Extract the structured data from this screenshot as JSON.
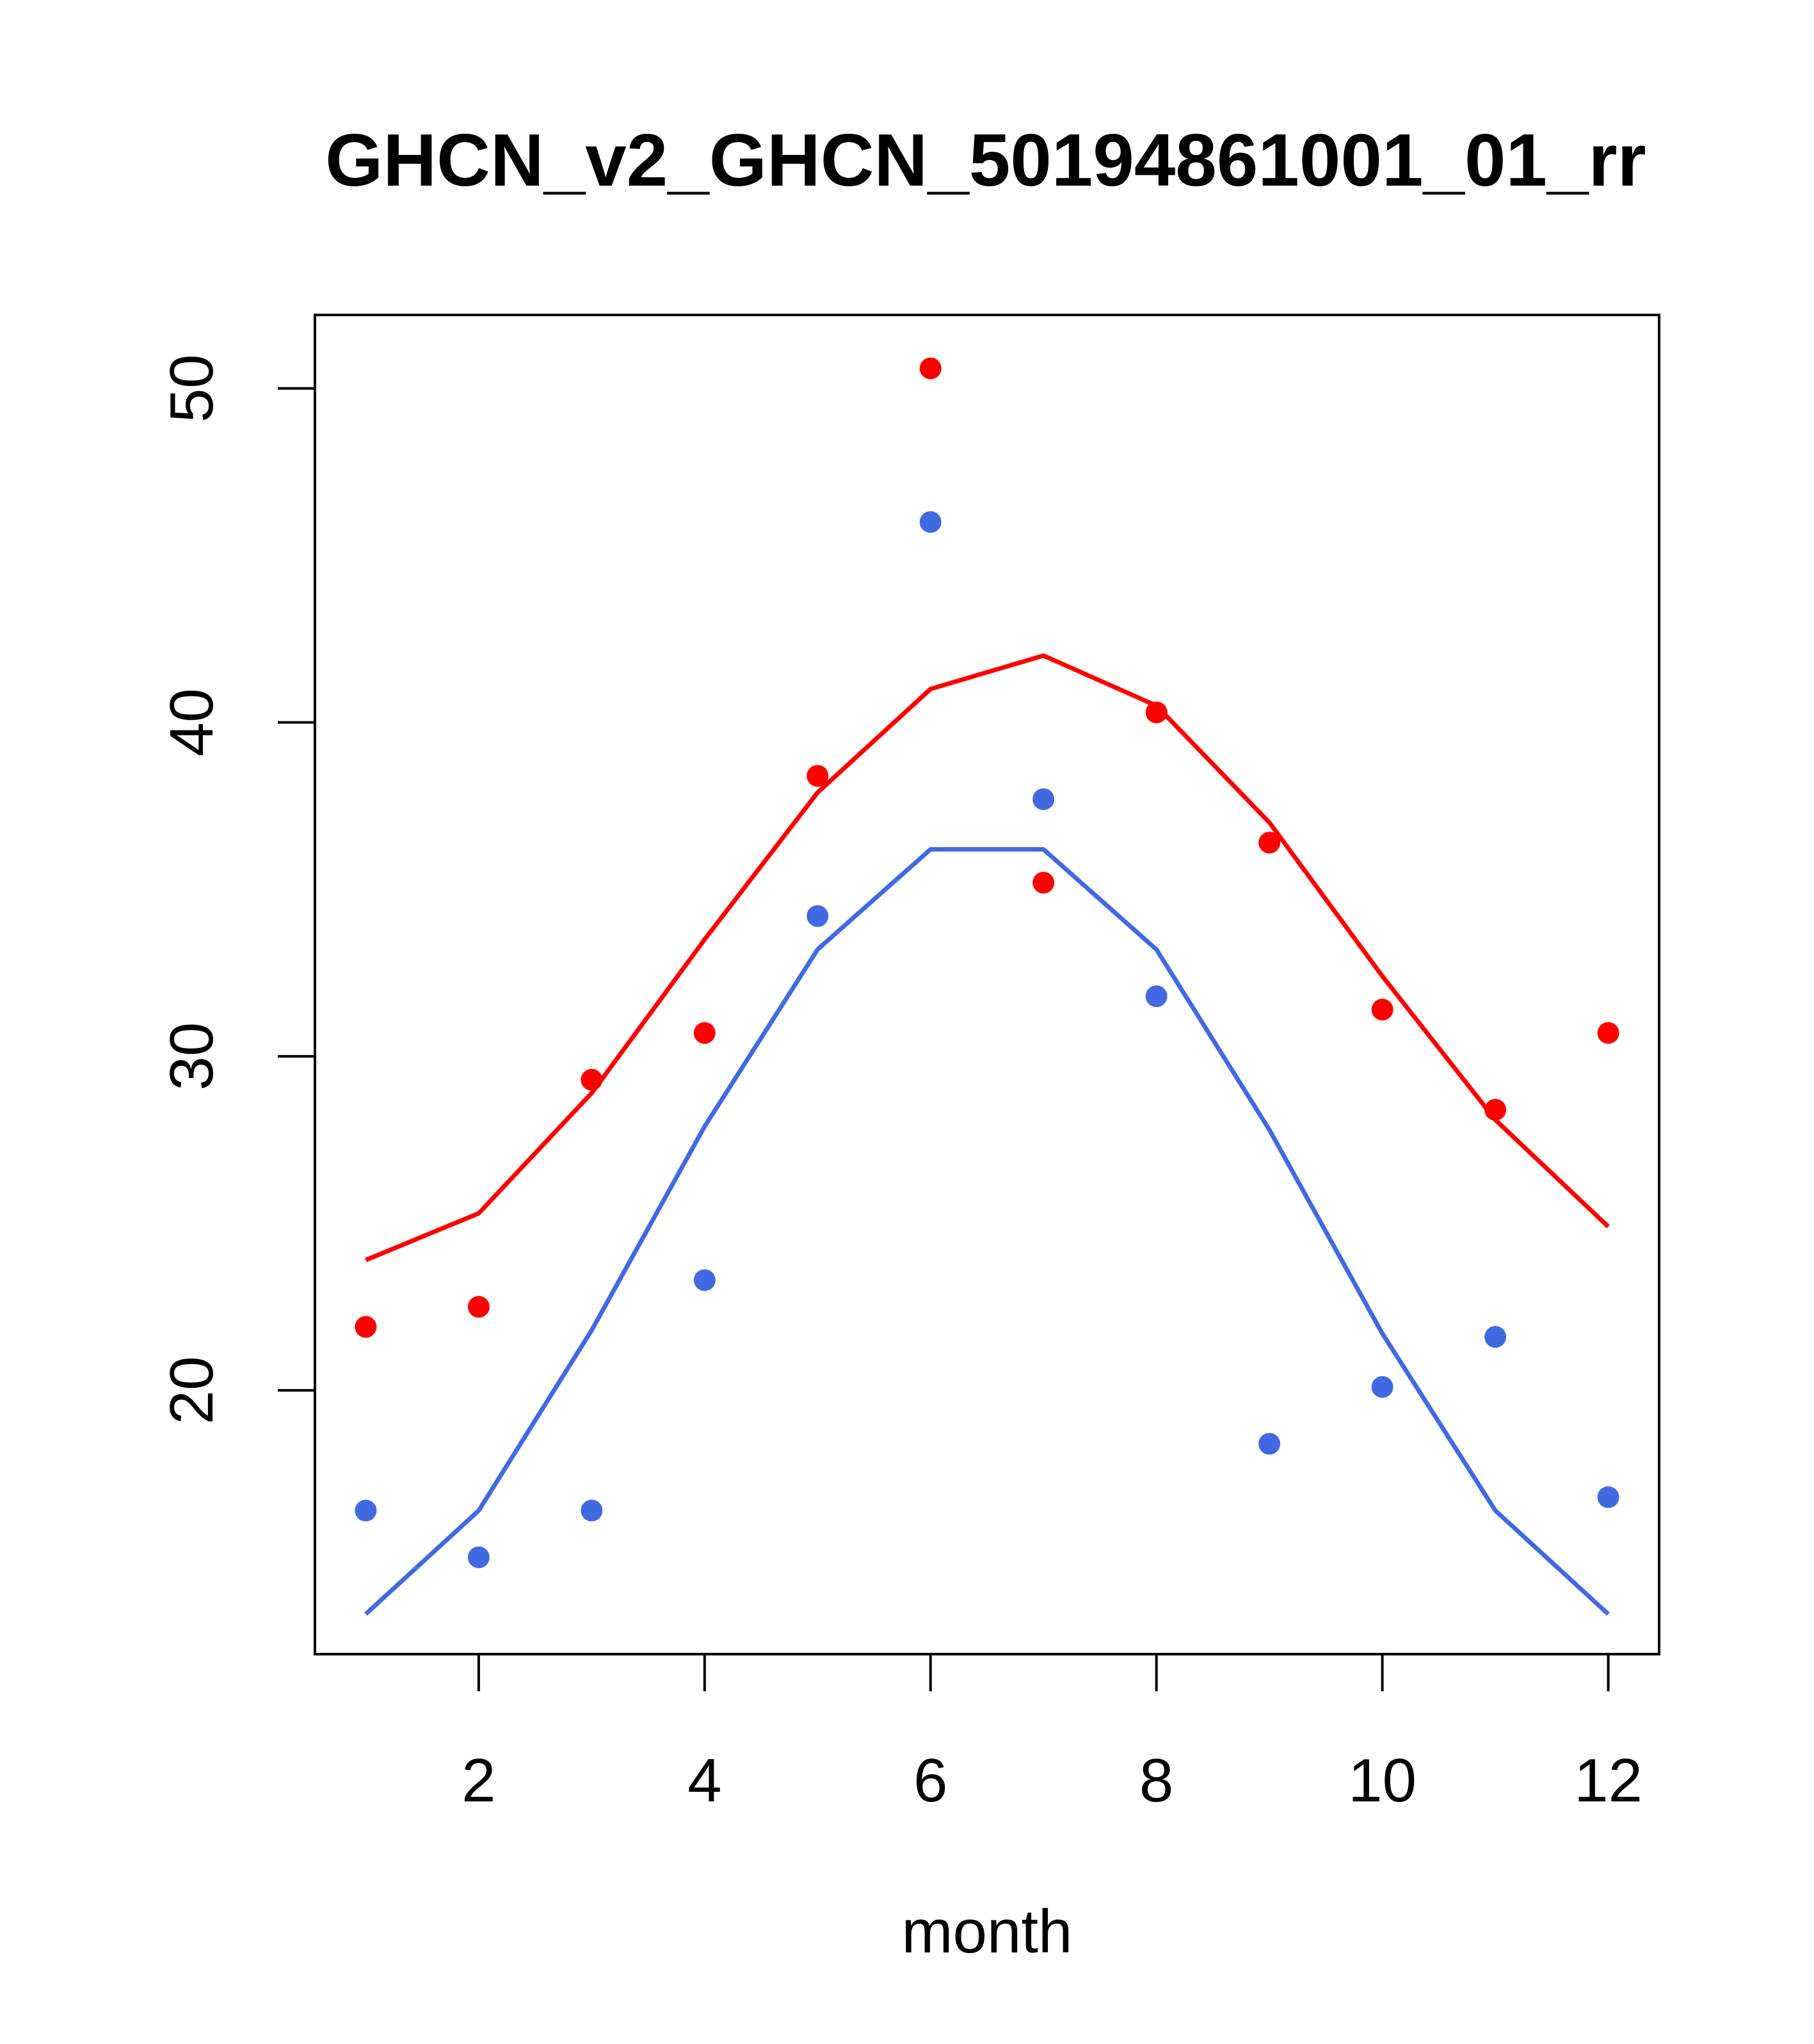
{
  "chart_data": {
    "type": "line",
    "title": "GHCN_v2_GHCN_50194861001_01_rr",
    "xlabel": "month",
    "ylabel": "",
    "xlim": [
      0.55,
      12.45
    ],
    "ylim": [
      12.1,
      52.2
    ],
    "xticks": [
      2,
      4,
      6,
      8,
      10,
      12
    ],
    "yticks": [
      20,
      30,
      40,
      50
    ],
    "x": [
      1,
      2,
      3,
      4,
      5,
      6,
      7,
      8,
      9,
      10,
      11,
      12
    ],
    "grid": false,
    "legend": "none",
    "series": [
      {
        "kind": "line",
        "color": "#ff0000",
        "values": [
          23.9,
          25.3,
          28.9,
          33.5,
          37.9,
          41.0,
          42.0,
          40.5,
          37.0,
          32.4,
          28.1,
          24.9
        ]
      },
      {
        "kind": "line",
        "color": "#4169e1",
        "values": [
          13.3,
          16.4,
          21.8,
          27.9,
          33.2,
          36.2,
          36.2,
          33.2,
          27.8,
          21.7,
          16.4,
          13.3
        ]
      },
      {
        "kind": "points",
        "color": "#ff0000",
        "values": [
          21.9,
          22.5,
          29.3,
          30.7,
          38.4,
          50.6,
          35.2,
          40.3,
          36.4,
          31.4,
          28.4,
          30.7
        ]
      },
      {
        "kind": "points",
        "color": "#4169e1",
        "values": [
          16.4,
          15.0,
          16.4,
          23.3,
          34.2,
          46.0,
          37.7,
          31.8,
          18.4,
          20.1,
          21.6,
          16.8
        ]
      }
    ]
  }
}
